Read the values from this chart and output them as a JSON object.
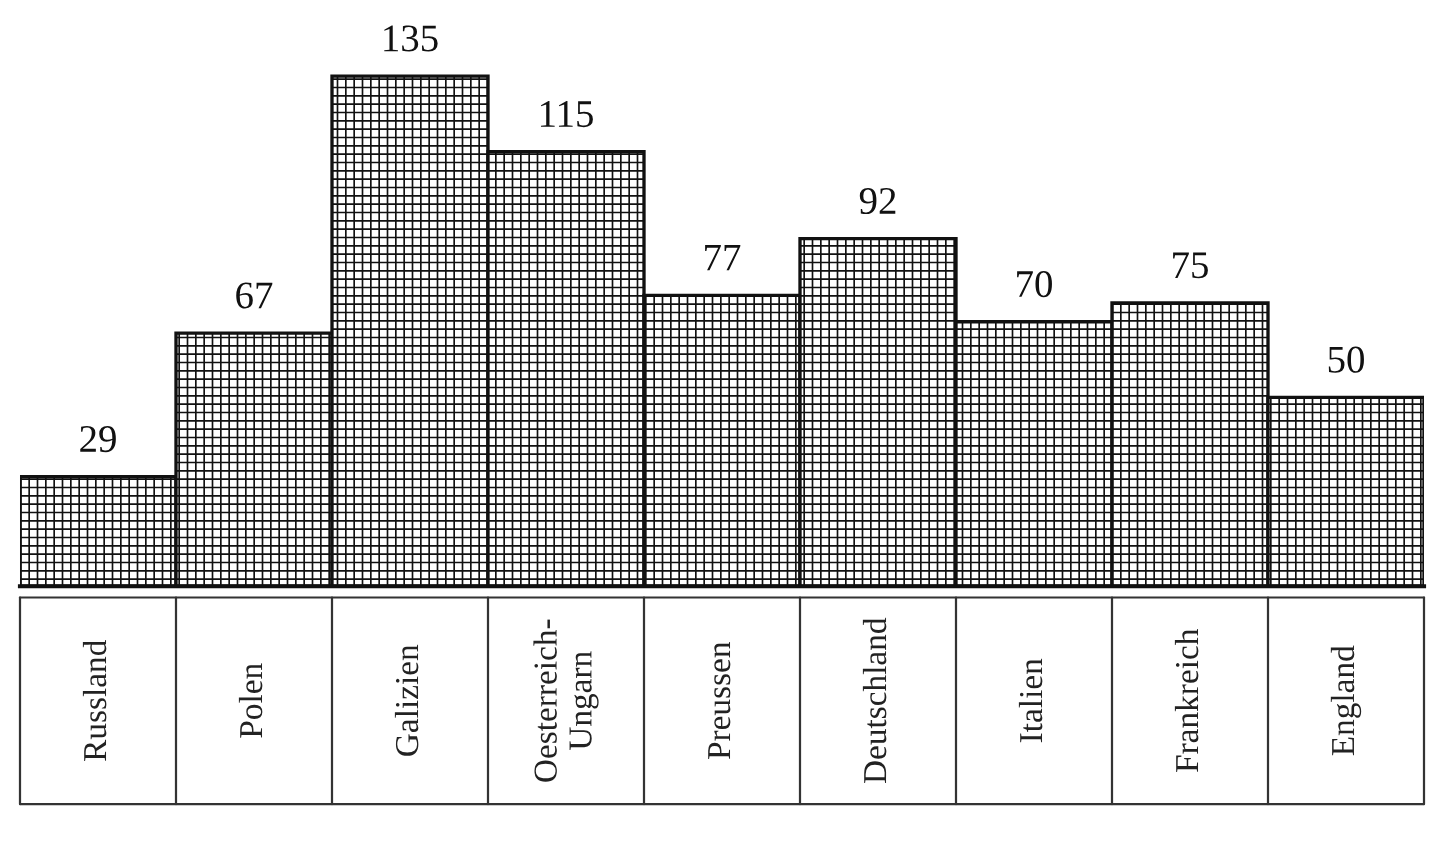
{
  "chart_data": {
    "type": "bar",
    "categories": [
      "Russland",
      "Polen",
      "Galizien",
      "Oesterreich-\nUngarn",
      "Preussen",
      "Deutschland",
      "Italien",
      "Frankreich",
      "England"
    ],
    "values": [
      29,
      67,
      135,
      115,
      77,
      92,
      70,
      75,
      50
    ],
    "color": "#111111",
    "data_labels": true
  }
}
